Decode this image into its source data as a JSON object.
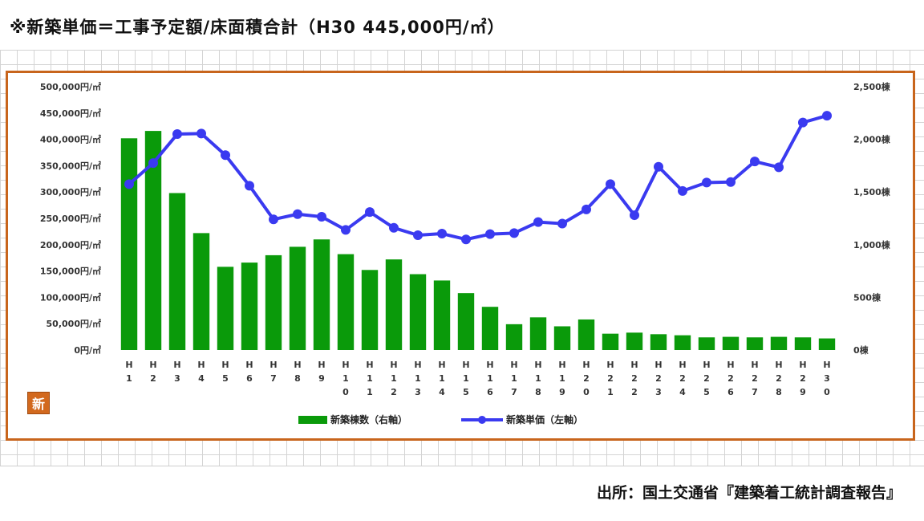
{
  "title": "※新築単価＝工事予定額/床面積合計（H30 445,000円/㎡）",
  "source": "出所：国土交通省『建築着工統計調査報告』",
  "logo": {
    "text": "新",
    "color": "#d2691e"
  },
  "chart_data": {
    "type": "bar",
    "categories": [
      "H1",
      "H2",
      "H3",
      "H4",
      "H5",
      "H6",
      "H7",
      "H8",
      "H9",
      "H10",
      "H11",
      "H12",
      "H13",
      "H14",
      "H15",
      "H16",
      "H17",
      "H18",
      "H19",
      "H20",
      "H21",
      "H22",
      "H23",
      "H24",
      "H25",
      "H26",
      "H27",
      "H28",
      "H29",
      "H30"
    ],
    "category_labels_vertical": [
      [
        "H",
        "1"
      ],
      [
        "H",
        "2"
      ],
      [
        "H",
        "3"
      ],
      [
        "H",
        "4"
      ],
      [
        "H",
        "5"
      ],
      [
        "H",
        "6"
      ],
      [
        "H",
        "7"
      ],
      [
        "H",
        "8"
      ],
      [
        "H",
        "9"
      ],
      [
        "H",
        "1",
        "0"
      ],
      [
        "H",
        "1",
        "1"
      ],
      [
        "H",
        "1",
        "2"
      ],
      [
        "H",
        "1",
        "3"
      ],
      [
        "H",
        "1",
        "4"
      ],
      [
        "H",
        "1",
        "5"
      ],
      [
        "H",
        "1",
        "6"
      ],
      [
        "H",
        "1",
        "7"
      ],
      [
        "H",
        "1",
        "8"
      ],
      [
        "H",
        "1",
        "9"
      ],
      [
        "H",
        "2",
        "0"
      ],
      [
        "H",
        "2",
        "1"
      ],
      [
        "H",
        "2",
        "2"
      ],
      [
        "H",
        "2",
        "3"
      ],
      [
        "H",
        "2",
        "4"
      ],
      [
        "H",
        "2",
        "5"
      ],
      [
        "H",
        "2",
        "6"
      ],
      [
        "H",
        "2",
        "7"
      ],
      [
        "H",
        "2",
        "8"
      ],
      [
        "H",
        "2",
        "9"
      ],
      [
        "H",
        "3",
        "0"
      ]
    ],
    "series": [
      {
        "name": "新築棟数（右軸）",
        "type": "bar",
        "axis": "right",
        "color": "#0a9a0a",
        "values": [
          2010,
          2080,
          1490,
          1110,
          790,
          830,
          900,
          980,
          1050,
          910,
          760,
          860,
          720,
          660,
          540,
          410,
          245,
          310,
          225,
          290,
          155,
          165,
          150,
          140,
          120,
          125,
          120,
          125,
          120,
          110
        ]
      },
      {
        "name": "新築単価（左軸）",
        "type": "line",
        "axis": "left",
        "color": "#3a3af0",
        "values": [
          315000,
          355000,
          410000,
          411000,
          370000,
          312000,
          248000,
          258000,
          253000,
          228000,
          262000,
          232000,
          218000,
          221000,
          210000,
          220000,
          222000,
          243000,
          240000,
          267000,
          315000,
          256000,
          348000,
          302000,
          318000,
          319000,
          358000,
          347000,
          432000,
          445000
        ]
      }
    ],
    "left_axis": {
      "ylim": [
        0,
        500000
      ],
      "tick_labels": [
        "0円/㎡",
        "50,000円/㎡",
        "100,000円/㎡",
        "150,000円/㎡",
        "200,000円/㎡",
        "250,000円/㎡",
        "300,000円/㎡",
        "350,000円/㎡",
        "400,000円/㎡",
        "450,000円/㎡",
        "500,000円/㎡"
      ]
    },
    "right_axis": {
      "ylim": [
        0,
        2500
      ],
      "tick_labels": [
        "0棟",
        "500棟",
        "1,000棟",
        "1,500棟",
        "2,000棟",
        "2,500棟"
      ]
    },
    "legend": {
      "placement": "bottom"
    },
    "grid": false
  }
}
